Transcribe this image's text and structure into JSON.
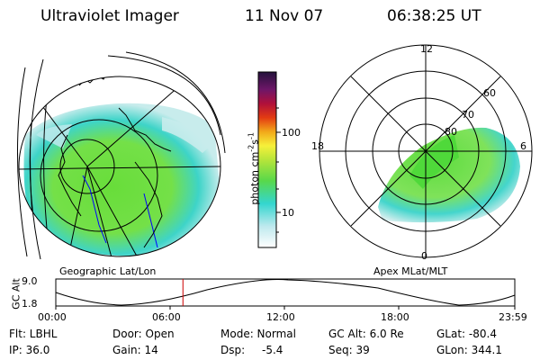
{
  "header": {
    "instrument": "Ultraviolet Imager",
    "date": "11 Nov 07",
    "time": "06:38:25 UT"
  },
  "colorbar": {
    "unit_label": "photon cm",
    "unit_sup1": "-2",
    "unit_mid": "s",
    "unit_sup2": "-1",
    "ticks": [
      "100",
      "10"
    ]
  },
  "left_panel": {
    "label": "Geographic Lat/Lon"
  },
  "right_panel": {
    "label": "Apex MLat/MLT",
    "mlt_labels": [
      "12",
      "18",
      "6",
      "0"
    ],
    "lat_labels": [
      "60",
      "70",
      "80"
    ]
  },
  "altitude_plot": {
    "ylabel": "GC Alt",
    "y_ticks": [
      "9.0",
      "1.8"
    ],
    "x_ticks": [
      "00:00",
      "06:00",
      "12:00",
      "18:00",
      "23:59"
    ],
    "current_time_fraction": 0.277
  },
  "status": {
    "flt": "Flt: LBHL",
    "ip": "IP: 36.0",
    "door": "Door: Open",
    "gain": "Gain: 14",
    "mode": "Mode: Normal",
    "dsp_label": "Dsp:",
    "dsp_value": "-5.4",
    "gc_alt": "GC Alt: 6.0 Re",
    "seq": "Seq: 39",
    "glat": "GLat: -80.4",
    "glon": "GLon: 344.1"
  },
  "colors": {
    "uv_green": "#6fe03a",
    "uv_cyan": "#3fd8d0",
    "uv_pale": "#c8ecec",
    "marker_red": "#cc0000",
    "grid": "#000000",
    "coast_blue": "#0000ff"
  }
}
